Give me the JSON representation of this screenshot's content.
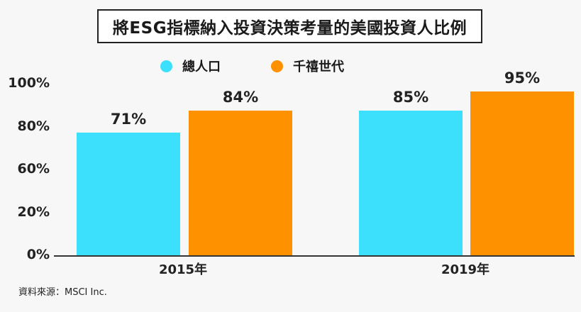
{
  "chart_data": {
    "type": "bar",
    "title": "將ESG指標納入投資決策考量的美國投資人比例",
    "categories": [
      "2015年",
      "2019年"
    ],
    "series": [
      {
        "name": "總人口",
        "values": [
          71,
          85
        ],
        "labels": [
          "71%",
          "85%"
        ],
        "color": "#3de0fc"
      },
      {
        "name": "千禧世代",
        "values": [
          84,
          95
        ],
        "labels": [
          "84%",
          "95%"
        ],
        "color": "#fe9100"
      }
    ],
    "yticks": [
      "100%",
      "80%",
      "60%",
      "20%",
      "0%"
    ],
    "legend_position": "top",
    "grid": false
  },
  "source": "資料來源：MSCI Inc."
}
